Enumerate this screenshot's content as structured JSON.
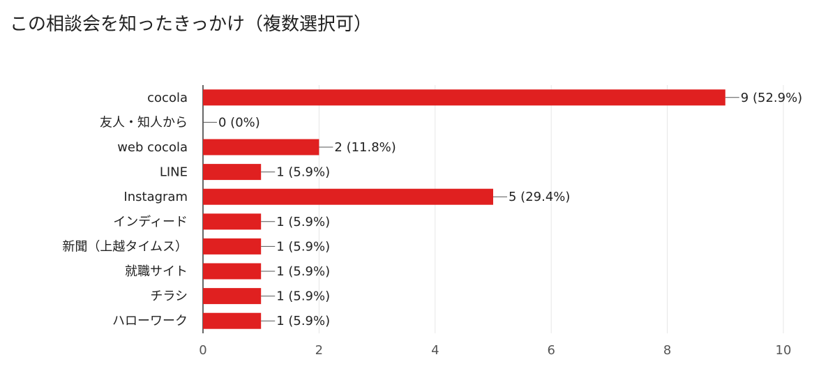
{
  "title": "この相談会を知ったきっかけ（複数選択可）",
  "chart_data": {
    "type": "bar",
    "orientation": "horizontal",
    "title": "この相談会を知ったきっかけ（複数選択可）",
    "categories": [
      "cocola",
      "友人・知人から",
      "web cocola",
      "LINE",
      "Instagram",
      "インディード",
      "新聞（上越タイムス）",
      "就職サイト",
      "チラシ",
      "ハローワーク"
    ],
    "values": [
      9,
      0,
      2,
      1,
      5,
      1,
      1,
      1,
      1,
      1
    ],
    "data_labels": [
      "9 (52.9%)",
      "0 (0%)",
      "2 (11.8%)",
      "1 (5.9%)",
      "5 (29.4%)",
      "1 (5.9%)",
      "1 (5.9%)",
      "1 (5.9%)",
      "1 (5.9%)",
      "1 (5.9%)"
    ],
    "xlim": [
      0,
      10
    ],
    "xticks": [
      0,
      2,
      4,
      6,
      8,
      10
    ],
    "xlabel": "",
    "ylabel": "",
    "grid": true,
    "legend": false,
    "bar_color": "#e02020"
  }
}
